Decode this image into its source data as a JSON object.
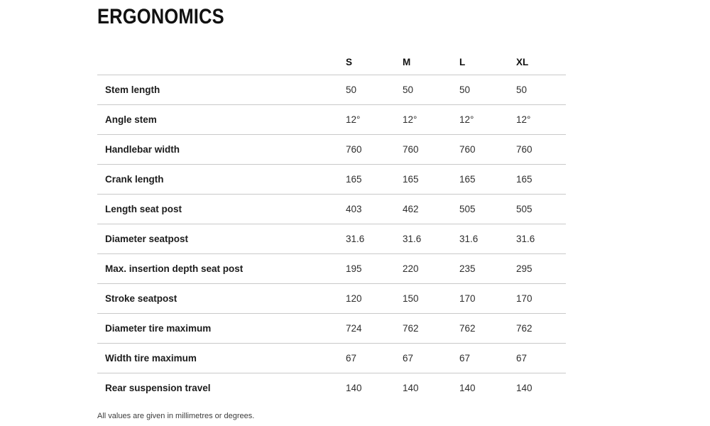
{
  "chart_data": {
    "type": "table",
    "title": "ERGONOMICS",
    "columns": [
      "S",
      "M",
      "L",
      "XL"
    ],
    "rows": [
      {
        "label": "Stem length",
        "values": [
          "50",
          "50",
          "50",
          "50"
        ]
      },
      {
        "label": "Angle stem",
        "values": [
          "12°",
          "12°",
          "12°",
          "12°"
        ]
      },
      {
        "label": "Handlebar width",
        "values": [
          "760",
          "760",
          "760",
          "760"
        ]
      },
      {
        "label": "Crank length",
        "values": [
          "165",
          "165",
          "165",
          "165"
        ]
      },
      {
        "label": "Length seat post",
        "values": [
          "403",
          "462",
          "505",
          "505"
        ]
      },
      {
        "label": "Diameter seatpost",
        "values": [
          "31.6",
          "31.6",
          "31.6",
          "31.6"
        ]
      },
      {
        "label": "Max. insertion depth seat post",
        "values": [
          "195",
          "220",
          "235",
          "295"
        ]
      },
      {
        "label": "Stroke seatpost",
        "values": [
          "120",
          "150",
          "170",
          "170"
        ]
      },
      {
        "label": "Diameter tire maximum",
        "values": [
          "724",
          "762",
          "762",
          "762"
        ]
      },
      {
        "label": "Width tire maximum",
        "values": [
          "67",
          "67",
          "67",
          "67"
        ]
      },
      {
        "label": "Rear suspension travel",
        "values": [
          "140",
          "140",
          "140",
          "140"
        ]
      }
    ],
    "footnote": "All values are given in millimetres or degrees.",
    "layout": {
      "grid": "horizontal-dividers-only",
      "legend": "none"
    }
  },
  "colors": {
    "heading_text": "#111111",
    "label_text": "#1c1c1c",
    "value_text": "#2e2e2e",
    "divider": "#c9c9c9",
    "footnote_text": "#3c3c3c",
    "background": "#ffffff"
  }
}
